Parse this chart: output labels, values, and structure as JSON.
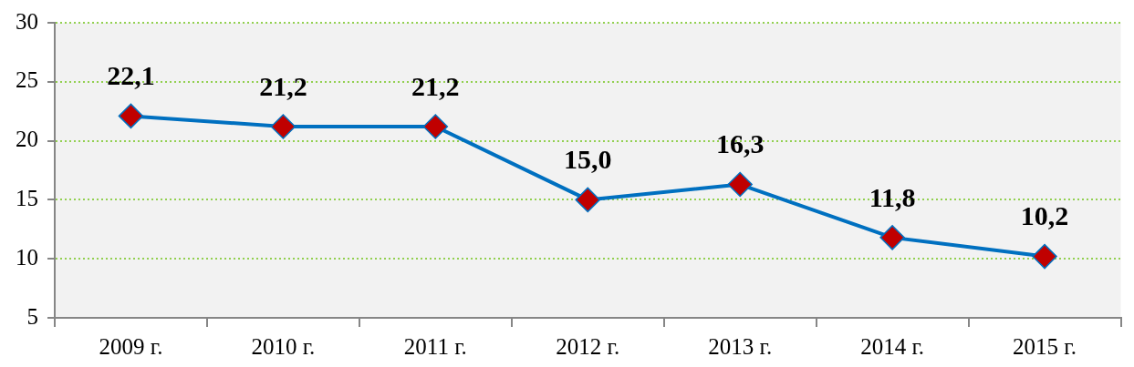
{
  "chart_data": {
    "type": "line",
    "categories": [
      "2009 г.",
      "2010 г.",
      "2011 г.",
      "2012 г.",
      "2013 г.",
      "2014 г.",
      "2015 г."
    ],
    "values": [
      22.1,
      21.2,
      21.2,
      15.0,
      16.3,
      11.8,
      10.2
    ],
    "value_labels": [
      "22,1",
      "21,2",
      "21,2",
      "15,0",
      "16,3",
      "11,8",
      "10,2"
    ],
    "color": "#0070c0",
    "colors": [
      "#c00000",
      "#c00000",
      "#c00000",
      "#c00000",
      "#c00000",
      "#c00000",
      "#c00000"
    ],
    "ylim": [
      5,
      30
    ],
    "yticks": [
      5,
      10,
      15,
      20,
      25,
      30
    ],
    "grid": "y",
    "marker": "diamond",
    "line_style": "solid"
  }
}
